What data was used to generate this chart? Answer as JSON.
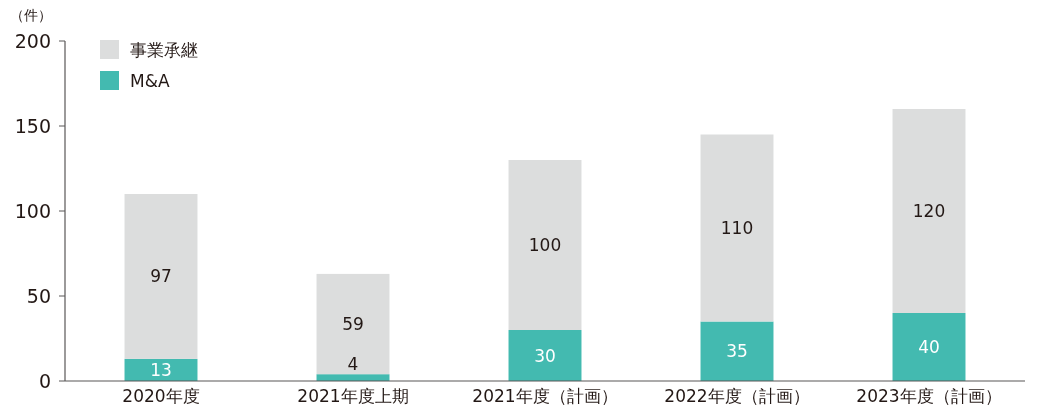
{
  "chart_data": {
    "type": "bar",
    "stacked": true,
    "ylabel": "（件）",
    "categories": [
      "2020年度",
      "2021年度上期",
      "2021年度（計画）",
      "2022年度（計画）",
      "2023年度（計画）"
    ],
    "series": [
      {
        "name": "M&A",
        "color": "#43bab0",
        "values": [
          13,
          4,
          30,
          35,
          40
        ]
      },
      {
        "name": "事業承継",
        "color": "#dcdddd",
        "values": [
          97,
          59,
          100,
          110,
          120
        ]
      }
    ],
    "ylim": [
      0,
      200
    ],
    "yticks": [
      0,
      50,
      100,
      150,
      200
    ],
    "grid": false,
    "legend": "top left",
    "data_labels": true
  }
}
